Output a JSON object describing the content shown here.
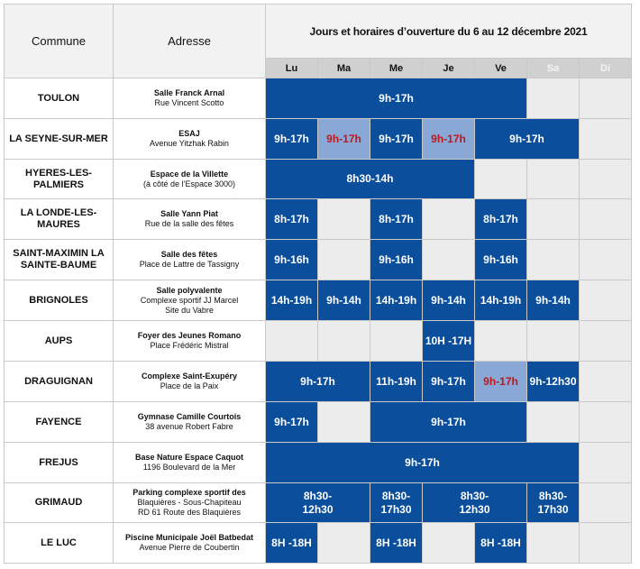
{
  "header": {
    "commune": "Commune",
    "adresse": "Adresse",
    "title": "Jours et horaires d’ouverture du 6 au 12 décembre  2021",
    "days": [
      "Lu",
      "Ma",
      "Me",
      "Je",
      "Ve",
      "Sa",
      "Di"
    ]
  },
  "rows": [
    {
      "commune": "TOULON",
      "addr": [
        "Salle Franck Arnal",
        "Rue Vincent Scotto"
      ],
      "cells": [
        {
          "span": 5,
          "text": "9h-17h"
        },
        {
          "span": 1
        },
        {
          "span": 1
        }
      ]
    },
    {
      "commune": "LA SEYNE-SUR-MER",
      "addr": [
        "ESAJ",
        "Avenue Yitzhak Rabin"
      ],
      "cells": [
        {
          "span": 1,
          "text": "9h-17h"
        },
        {
          "span": 1,
          "text": "9h-17h",
          "light": true
        },
        {
          "span": 1,
          "text": "9h-17h"
        },
        {
          "span": 1,
          "text": "9h-17h",
          "light": true
        },
        {
          "span": 2,
          "text": "9h-17h"
        },
        {
          "span": 1
        }
      ]
    },
    {
      "commune": "HYERES-LES-PALMIERS",
      "addr": [
        "Espace de la Villette",
        "(à côté de l’Espace 3000)"
      ],
      "cells": [
        {
          "span": 4,
          "text": "8h30-14h"
        },
        {
          "span": 1
        },
        {
          "span": 1
        },
        {
          "span": 1
        }
      ]
    },
    {
      "commune": "LA LONDE-LES-MAURES",
      "addr": [
        "Salle Yann Piat",
        "Rue de la salle des fêtes"
      ],
      "cells": [
        {
          "span": 1,
          "text": "8h-17h"
        },
        {
          "span": 1
        },
        {
          "span": 1,
          "text": "8h-17h"
        },
        {
          "span": 1
        },
        {
          "span": 1,
          "text": "8h-17h"
        },
        {
          "span": 1
        },
        {
          "span": 1
        }
      ]
    },
    {
      "commune": "SAINT-MAXIMIN LA SAINTE-BAUME",
      "addr": [
        "Salle des fêtes",
        "Place de Lattre de Tassigny"
      ],
      "cells": [
        {
          "span": 1,
          "text": "9h-16h"
        },
        {
          "span": 1
        },
        {
          "span": 1,
          "text": "9h-16h"
        },
        {
          "span": 1
        },
        {
          "span": 1,
          "text": "9h-16h"
        },
        {
          "span": 1
        },
        {
          "span": 1
        }
      ]
    },
    {
      "commune": "BRIGNOLES",
      "addr": [
        "Salle polyvalente",
        "Complexe sportif JJ Marcel",
        "Site du Vabre"
      ],
      "cells": [
        {
          "span": 1,
          "text": "14h-19h"
        },
        {
          "span": 1,
          "text": "9h-14h"
        },
        {
          "span": 1,
          "text": "14h-19h"
        },
        {
          "span": 1,
          "text": "9h-14h"
        },
        {
          "span": 1,
          "text": "14h-19h"
        },
        {
          "span": 1,
          "text": "9h-14h"
        },
        {
          "span": 1
        }
      ]
    },
    {
      "commune": "AUPS",
      "addr": [
        "Foyer des Jeunes Romano",
        "Place Frédéric Mistral"
      ],
      "cells": [
        {
          "span": 1
        },
        {
          "span": 1
        },
        {
          "span": 1
        },
        {
          "span": 1,
          "text": "10H -17H"
        },
        {
          "span": 1
        },
        {
          "span": 1
        },
        {
          "span": 1
        }
      ]
    },
    {
      "commune": "DRAGUIGNAN",
      "addr": [
        "Complexe Saint-Exupéry",
        "Place de la Paix"
      ],
      "cells": [
        {
          "span": 2,
          "text": "9h-17h"
        },
        {
          "span": 1,
          "text": "11h-19h"
        },
        {
          "span": 1,
          "text": "9h-17h"
        },
        {
          "span": 1,
          "text": "9h-17h",
          "light": true
        },
        {
          "span": 1,
          "text": "9h-12h30"
        },
        {
          "span": 1
        }
      ]
    },
    {
      "commune": "FAYENCE",
      "addr": [
        "Gymnase Camille Courtois",
        "38 avenue Robert Fabre"
      ],
      "cells": [
        {
          "span": 1,
          "text": "9h-17h"
        },
        {
          "span": 1
        },
        {
          "span": 3,
          "text": "9h-17h"
        },
        {
          "span": 1
        },
        {
          "span": 1
        }
      ]
    },
    {
      "commune": "FREJUS",
      "addr": [
        "Base Nature Espace Caquot",
        "1196 Boulevard de la Mer"
      ],
      "cells": [
        {
          "span": 6,
          "text": "9h-17h"
        },
        {
          "span": 1
        }
      ]
    },
    {
      "commune": "GRIMAUD",
      "addr": [
        "Parking complexe sportif des",
        "Blaquières - Sous-Chapiteau",
        "RD 61 Route des Blaquières"
      ],
      "cells": [
        {
          "span": 2,
          "text": "8h30-\n12h30"
        },
        {
          "span": 1,
          "text": "8h30-\n17h30"
        },
        {
          "span": 2,
          "text": "8h30-\n12h30"
        },
        {
          "span": 1,
          "text": "8h30-\n17h30"
        },
        {
          "span": 1
        }
      ]
    },
    {
      "commune": "LE LUC",
      "addr": [
        "Piscine Municipale Joël Batbedat",
        "Avenue Pierre de Coubertin"
      ],
      "cells": [
        {
          "span": 1,
          "text": "8H -18H"
        },
        {
          "span": 1
        },
        {
          "span": 1,
          "text": "8H -18H"
        },
        {
          "span": 1
        },
        {
          "span": 1,
          "text": "8H -18H"
        },
        {
          "span": 1
        },
        {
          "span": 1
        }
      ]
    }
  ],
  "colors": {
    "slot": "#0b4e9c",
    "slot_light": "#8aa8d6",
    "highlight_text": "#c0171b",
    "header_bg": "#f2f2f2",
    "day_bg": "#d0d0d0"
  }
}
